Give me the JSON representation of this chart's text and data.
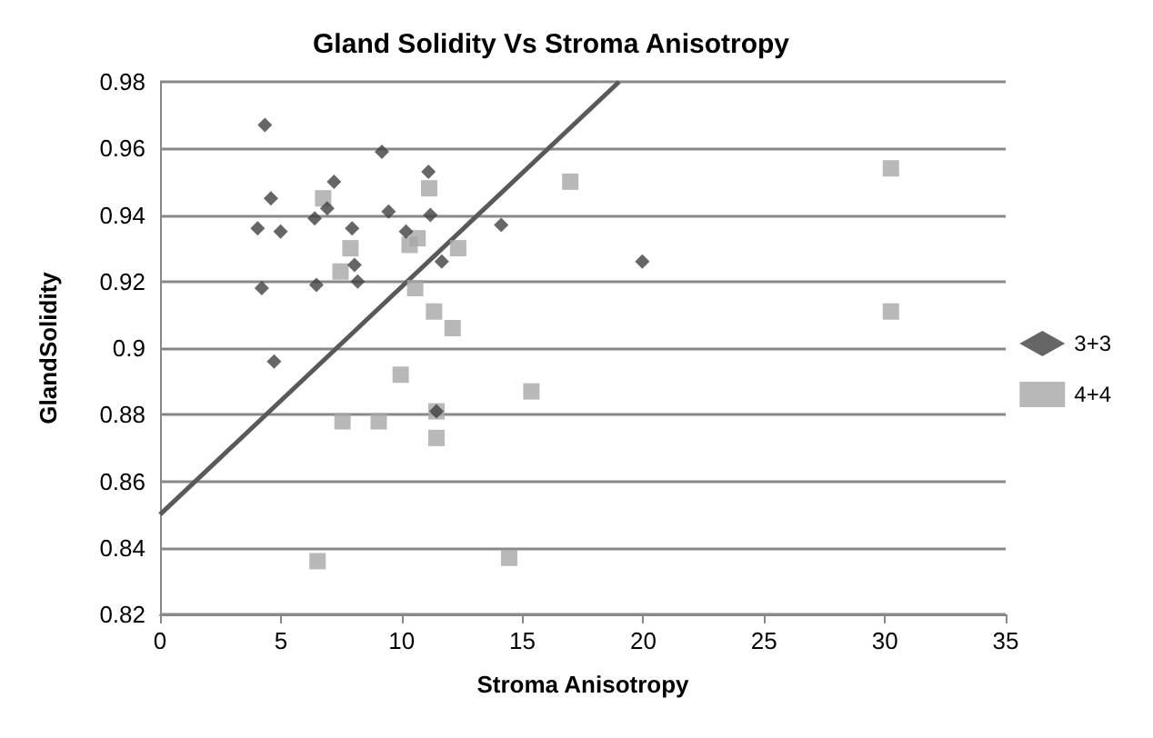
{
  "chart_data": {
    "type": "scatter",
    "title": "Gland Solidity Vs Stroma Anisotropy",
    "xlabel": "Stroma Anisotropy",
    "ylabel": "GlandSolidity",
    "xlim": [
      0,
      35
    ],
    "xticks": [
      0,
      5,
      10,
      15,
      20,
      25,
      30,
      35
    ],
    "ylim": [
      0.82,
      0.98
    ],
    "yticks": [
      0.82,
      0.84,
      0.86,
      0.88,
      0.9,
      0.92,
      0.94,
      0.96,
      0.98
    ],
    "grid": "y",
    "legend": "right",
    "series": [
      {
        "name": "3+3",
        "color": "#404040",
        "marker": "diamond",
        "x": [
          4.34,
          9.18,
          11.11,
          7.2,
          4.59,
          6.92,
          6.4,
          9.46,
          11.19,
          4.04,
          4.99,
          7.95,
          10.18,
          14.12,
          8.05,
          11.66,
          8.18,
          4.21,
          6.47,
          4.72,
          19.96,
          11.44
        ],
        "values": [
          0.967,
          0.959,
          0.953,
          0.95,
          0.945,
          0.942,
          0.939,
          0.941,
          0.94,
          0.936,
          0.935,
          0.936,
          0.935,
          0.937,
          0.925,
          0.926,
          0.92,
          0.918,
          0.919,
          0.896,
          0.926,
          0.881
        ]
      },
      {
        "name": "4+4",
        "color": "#a6a6a6",
        "marker": "square",
        "x": [
          6.75,
          11.14,
          16.98,
          7.88,
          7.47,
          10.66,
          10.33,
          12.34,
          10.56,
          11.34,
          12.11,
          9.96,
          15.37,
          7.55,
          9.05,
          11.44,
          11.44,
          6.52,
          14.45,
          30.25,
          30.25
        ],
        "values": [
          0.945,
          0.948,
          0.95,
          0.93,
          0.923,
          0.933,
          0.931,
          0.93,
          0.918,
          0.911,
          0.906,
          0.892,
          0.887,
          0.878,
          0.878,
          0.881,
          0.873,
          0.836,
          0.837,
          0.911,
          0.954
        ]
      },
      {
        "type": "line",
        "color": "#595959",
        "marker": "none",
        "line_style": "solid",
        "x": [
          0,
          19
        ],
        "values": [
          0.85,
          0.98
        ]
      }
    ]
  }
}
